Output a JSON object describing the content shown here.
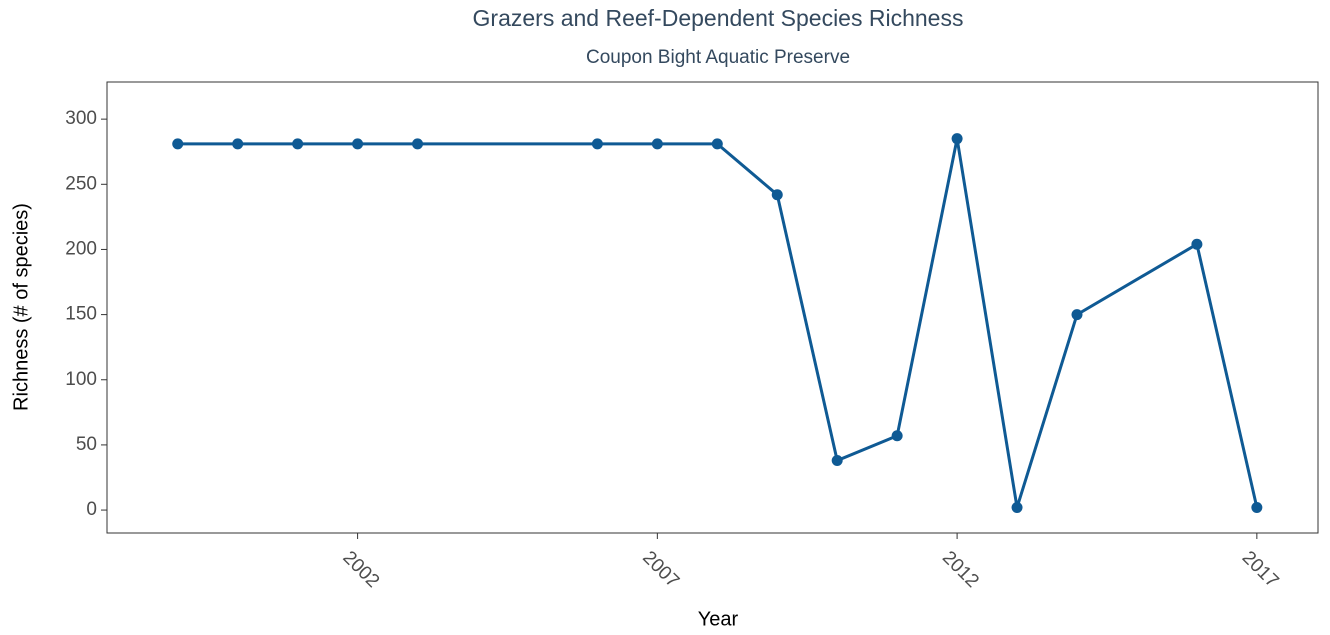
{
  "chart_data": {
    "type": "line",
    "title": "Grazers and Reef-Dependent Species Richness",
    "subtitle": "Coupon Bight Aquatic Preserve",
    "x_label": "Year",
    "y_label": "Richness (# of species)",
    "x": [
      1999,
      2000,
      2001,
      2002,
      2003,
      2006,
      2007,
      2008,
      2009,
      2010,
      2011,
      2012,
      2013,
      2014,
      2016,
      2017
    ],
    "series": [
      {
        "name": "Richness",
        "color": "#0f5a94",
        "values": [
          281,
          281,
          281,
          281,
          281,
          281,
          281,
          281,
          242,
          38,
          57,
          285,
          2,
          150,
          204,
          2
        ]
      }
    ],
    "xlim": [
      1997.82,
      2018.02
    ],
    "xticks": [
      2002,
      2007,
      2012,
      2017
    ],
    "ylim": [
      -17.6,
      328.5
    ],
    "yticks": [
      0,
      50,
      100,
      150,
      200,
      250,
      300
    ],
    "grid": false
  }
}
